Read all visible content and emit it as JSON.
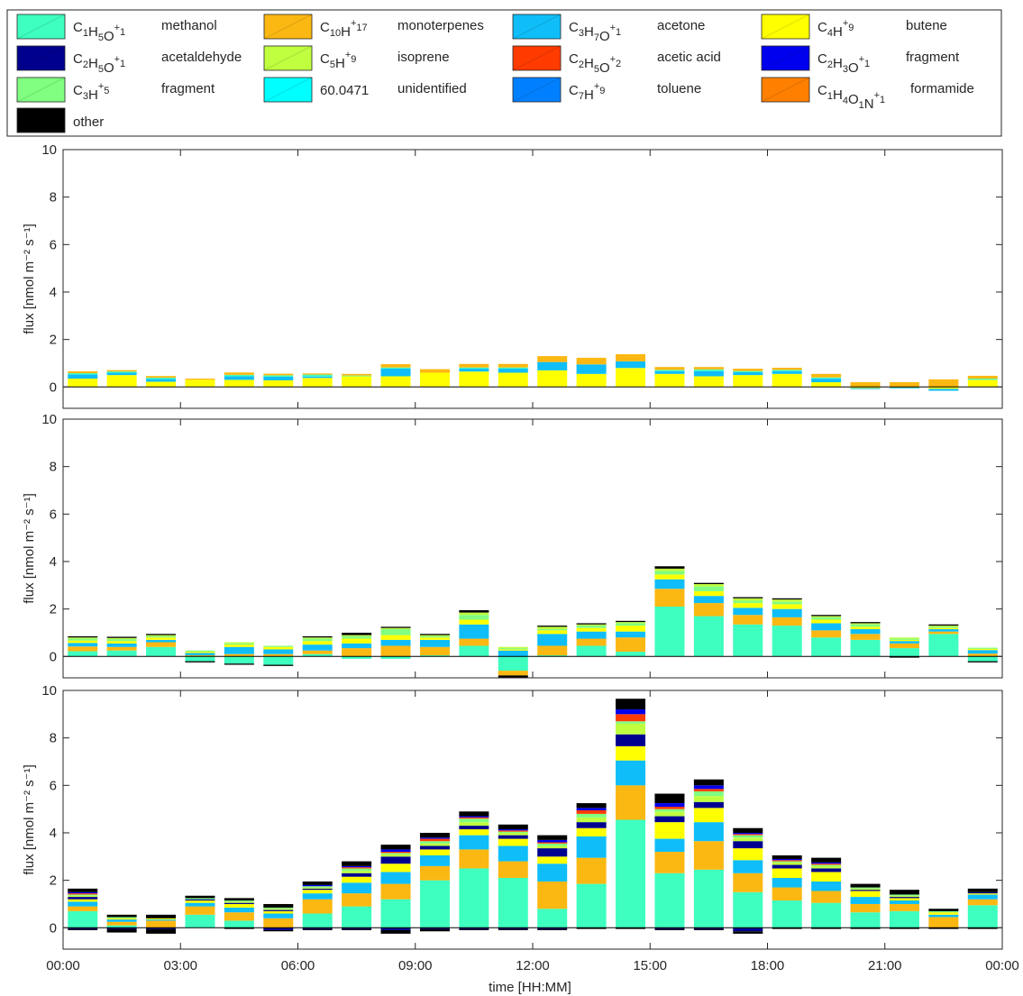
{
  "legend": {
    "entries": [
      {
        "id": "methanol",
        "formula": [
          [
            "C",
            ""
          ],
          [
            "1",
            "sub"
          ],
          [
            "H",
            ""
          ],
          [
            "5",
            "sub"
          ],
          [
            "O",
            ""
          ],
          [
            "+",
            "sup"
          ],
          [
            "1",
            "sub"
          ]
        ],
        "name": "methanol",
        "color": "#3effbf"
      },
      {
        "id": "monoterpenes",
        "formula": [
          [
            "C",
            ""
          ],
          [
            "10",
            "sub"
          ],
          [
            "H",
            ""
          ],
          [
            "+",
            "sup"
          ],
          [
            "17",
            "sub"
          ]
        ],
        "name": "monoterpenes",
        "color": "#fcb812"
      },
      {
        "id": "acetone",
        "formula": [
          [
            "C",
            ""
          ],
          [
            "3",
            "sub"
          ],
          [
            "H",
            ""
          ],
          [
            "7",
            "sub"
          ],
          [
            "O",
            ""
          ],
          [
            "+",
            "sup"
          ],
          [
            "1",
            "sub"
          ]
        ],
        "name": "acetone",
        "color": "#0fbef8"
      },
      {
        "id": "butene",
        "formula": [
          [
            "C",
            ""
          ],
          [
            "4",
            "sub"
          ],
          [
            "H",
            ""
          ],
          [
            "+",
            "sup"
          ],
          [
            "9",
            "sub"
          ]
        ],
        "name": "butene",
        "color": "#ffff00"
      },
      {
        "id": "acetaldehyde",
        "formula": [
          [
            "C",
            ""
          ],
          [
            "2",
            "sub"
          ],
          [
            "H",
            ""
          ],
          [
            "5",
            "sub"
          ],
          [
            "O",
            ""
          ],
          [
            "+",
            "sup"
          ],
          [
            "1",
            "sub"
          ]
        ],
        "name": "acetaldehyde",
        "color": "#00008f"
      },
      {
        "id": "isoprene",
        "formula": [
          [
            "C",
            ""
          ],
          [
            "5",
            "sub"
          ],
          [
            "H",
            ""
          ],
          [
            "+",
            "sup"
          ],
          [
            "9",
            "sub"
          ]
        ],
        "name": "isoprene",
        "color": "#bfff3f"
      },
      {
        "id": "acetic_acid",
        "formula": [
          [
            "C",
            ""
          ],
          [
            "2",
            "sub"
          ],
          [
            "H",
            ""
          ],
          [
            "5",
            "sub"
          ],
          [
            "O",
            ""
          ],
          [
            "+",
            "sup"
          ],
          [
            "2",
            "sub"
          ]
        ],
        "name": "acetic acid",
        "color": "#ff3b00"
      },
      {
        "id": "fragment_c2h3o",
        "formula": [
          [
            "C",
            ""
          ],
          [
            "2",
            "sub"
          ],
          [
            "H",
            ""
          ],
          [
            "3",
            "sub"
          ],
          [
            "O",
            ""
          ],
          [
            "+",
            "sup"
          ],
          [
            "1",
            "sub"
          ]
        ],
        "name": "fragment",
        "color": "#0000ef"
      },
      {
        "id": "fragment_c3h5",
        "formula": [
          [
            "C",
            ""
          ],
          [
            "3",
            "sub"
          ],
          [
            "H",
            ""
          ],
          [
            "+",
            "sup"
          ],
          [
            "5",
            "sub"
          ]
        ],
        "name": "fragment",
        "color": "#80ff80"
      },
      {
        "id": "unidentified",
        "formula": [
          [
            "60.0471",
            ""
          ]
        ],
        "name": "unidentified",
        "color": "#00ffff"
      },
      {
        "id": "toluene",
        "formula": [
          [
            "C",
            ""
          ],
          [
            "7",
            "sub"
          ],
          [
            "H",
            ""
          ],
          [
            "+",
            "sup"
          ],
          [
            "9",
            "sub"
          ]
        ],
        "name": "toluene",
        "color": "#0080ff"
      },
      {
        "id": "formamide",
        "formula": [
          [
            "C",
            ""
          ],
          [
            "1",
            "sub"
          ],
          [
            "H",
            ""
          ],
          [
            "4",
            "sub"
          ],
          [
            "O",
            ""
          ],
          [
            "1",
            "sub"
          ],
          [
            "N",
            ""
          ],
          [
            "+",
            "sup"
          ],
          [
            "1",
            "sub"
          ]
        ],
        "name": "formamide",
        "color": "#ff8000"
      },
      {
        "id": "other",
        "formula": [],
        "name": "other",
        "color": "#000000"
      }
    ]
  },
  "axis_text": {
    "ylabel": "flux [nmol m⁻² s⁻¹]",
    "xlabel": "time [HH:MM]",
    "xtick_labels": [
      "00:00",
      "03:00",
      "06:00",
      "09:00",
      "12:00",
      "15:00",
      "18:00",
      "21:00",
      "00:00"
    ],
    "ytick_labels": [
      "0",
      "2",
      "4",
      "6",
      "8",
      "10"
    ]
  },
  "chart_data": [
    {
      "type": "bar",
      "stacked": true,
      "ylabel": "flux [nmol m⁻² s⁻¹]",
      "ylim": [
        -0.9,
        10
      ],
      "xlim_hours": [
        0,
        24
      ],
      "bin_start_hours": [
        0,
        1,
        2,
        3,
        4,
        5,
        6,
        7,
        8,
        9,
        10,
        11,
        12,
        13,
        14,
        15,
        16,
        17,
        18,
        19,
        20,
        21,
        22,
        23
      ],
      "series": [
        {
          "id": "butene",
          "values": [
            0.35,
            0.5,
            0.22,
            0.3,
            0.3,
            0.28,
            0.38,
            0.45,
            0.45,
            0.6,
            0.65,
            0.6,
            0.7,
            0.55,
            0.8,
            0.55,
            0.45,
            0.5,
            0.55,
            0.2,
            -0.05,
            -0.03,
            -0.08,
            0.3
          ]
        },
        {
          "id": "acetone",
          "values": [
            0.18,
            0.1,
            0.12,
            0.0,
            0.15,
            0.15,
            0.06,
            0.0,
            0.32,
            0.0,
            0.12,
            0.17,
            0.35,
            0.4,
            0.28,
            0.12,
            0.22,
            0.12,
            0.12,
            0.15,
            -0.04,
            -0.03,
            -0.08,
            0.0
          ]
        },
        {
          "id": "methanol",
          "values": [
            0.05,
            0.05,
            0.05,
            0.0,
            0.06,
            0.06,
            0.08,
            0.03,
            0.05,
            0.0,
            0.05,
            0.05,
            0.0,
            0.0,
            0.0,
            0.05,
            0.07,
            0.05,
            0.05,
            0.05,
            0.0,
            0.0,
            0.0,
            0.05
          ]
        },
        {
          "id": "monoterpenes",
          "values": [
            0.08,
            0.06,
            0.07,
            0.05,
            0.1,
            0.07,
            0.05,
            0.07,
            0.14,
            0.15,
            0.15,
            0.15,
            0.25,
            0.28,
            0.3,
            0.12,
            0.1,
            0.1,
            0.09,
            0.15,
            0.2,
            0.2,
            0.32,
            0.12
          ]
        }
      ]
    },
    {
      "type": "bar",
      "stacked": true,
      "ylabel": "flux [nmol m⁻² s⁻¹]",
      "ylim": [
        -0.9,
        10
      ],
      "xlim_hours": [
        0,
        24
      ],
      "bin_start_hours": [
        0,
        1,
        2,
        3,
        4,
        5,
        6,
        7,
        8,
        9,
        10,
        11,
        12,
        13,
        14,
        15,
        16,
        17,
        18,
        19,
        20,
        21,
        22,
        23
      ],
      "series": [
        {
          "id": "methanol",
          "values": [
            0.22,
            0.25,
            0.4,
            -0.2,
            -0.3,
            -0.35,
            0.1,
            -0.1,
            -0.1,
            0.05,
            0.45,
            -0.6,
            0.05,
            0.45,
            0.2,
            2.1,
            1.7,
            1.35,
            1.3,
            0.8,
            0.7,
            0.35,
            0.95,
            -0.2
          ]
        },
        {
          "id": "monoterpenes",
          "values": [
            0.2,
            0.15,
            0.2,
            0.05,
            0.1,
            0.1,
            0.15,
            0.35,
            0.45,
            0.35,
            0.3,
            -0.2,
            0.4,
            0.3,
            0.6,
            0.75,
            0.55,
            0.4,
            0.35,
            0.3,
            0.25,
            0.2,
            0.1,
            0.12
          ]
        },
        {
          "id": "acetone",
          "values": [
            0.15,
            0.15,
            0.1,
            0.1,
            0.3,
            0.2,
            0.25,
            0.2,
            0.25,
            0.3,
            0.6,
            0.25,
            0.5,
            0.3,
            0.25,
            0.4,
            0.3,
            0.3,
            0.35,
            0.3,
            0.2,
            0.1,
            0.1,
            0.15
          ]
        },
        {
          "id": "butene",
          "values": [
            0.1,
            0.1,
            0.1,
            0.05,
            0.1,
            0.1,
            0.15,
            0.2,
            0.2,
            0.1,
            0.2,
            0.05,
            0.15,
            0.15,
            0.25,
            0.2,
            0.2,
            0.2,
            0.2,
            0.15,
            0.1,
            0.05,
            0.05,
            0.05
          ]
        },
        {
          "id": "fragment_c3h5",
          "values": [
            0.08,
            0.08,
            0.05,
            0.05,
            0.05,
            0.05,
            0.1,
            0.1,
            0.25,
            0.05,
            0.2,
            0.05,
            0.05,
            0.1,
            0.1,
            0.15,
            0.2,
            0.1,
            0.1,
            0.1,
            0.1,
            0.05,
            0.05,
            0.05
          ]
        },
        {
          "id": "isoprene",
          "values": [
            0.05,
            0.05,
            0.05,
            0.0,
            0.05,
            0.0,
            0.05,
            0.05,
            0.05,
            0.05,
            0.1,
            0.05,
            0.1,
            0.05,
            0.05,
            0.1,
            0.1,
            0.1,
            0.1,
            0.05,
            0.05,
            0.05,
            0.05,
            0.0
          ]
        },
        {
          "id": "other",
          "values": [
            0.05,
            0.05,
            0.05,
            -0.05,
            -0.05,
            -0.05,
            0.05,
            0.1,
            0.05,
            0.05,
            0.1,
            -0.1,
            0.05,
            0.05,
            0.05,
            0.1,
            0.05,
            0.05,
            0.05,
            0.05,
            0.05,
            -0.05,
            0.05,
            -0.05
          ]
        }
      ]
    },
    {
      "type": "bar",
      "stacked": true,
      "ylabel": "flux [nmol m⁻² s⁻¹]",
      "ylim": [
        -0.9,
        10
      ],
      "xlim_hours": [
        0,
        24
      ],
      "bin_start_hours": [
        0,
        1,
        2,
        3,
        4,
        5,
        6,
        7,
        8,
        9,
        10,
        11,
        12,
        13,
        14,
        15,
        16,
        17,
        18,
        19,
        20,
        21,
        22,
        23
      ],
      "series": [
        {
          "id": "methanol",
          "values": [
            0.7,
            0.1,
            0.0,
            0.55,
            0.3,
            0.0,
            0.6,
            0.9,
            1.2,
            2.0,
            2.5,
            2.1,
            0.8,
            1.85,
            4.55,
            2.3,
            2.45,
            1.5,
            1.15,
            1.05,
            0.65,
            0.7,
            0.0,
            0.95
          ]
        },
        {
          "id": "monoterpenes",
          "values": [
            0.2,
            0.15,
            0.3,
            0.35,
            0.35,
            0.4,
            0.6,
            0.55,
            0.65,
            0.6,
            0.8,
            0.7,
            1.15,
            1.1,
            1.45,
            0.9,
            1.2,
            0.8,
            0.55,
            0.5,
            0.35,
            0.3,
            0.45,
            0.25
          ]
        },
        {
          "id": "acetone",
          "values": [
            0.2,
            0.1,
            0.05,
            0.15,
            0.2,
            0.2,
            0.25,
            0.45,
            0.5,
            0.45,
            0.6,
            0.65,
            0.75,
            0.9,
            1.05,
            0.55,
            0.8,
            0.55,
            0.4,
            0.4,
            0.3,
            0.15,
            0.1,
            0.2
          ]
        },
        {
          "id": "butene",
          "values": [
            0.1,
            0.05,
            0.05,
            0.1,
            0.15,
            0.1,
            0.15,
            0.25,
            0.35,
            0.25,
            0.25,
            0.3,
            0.3,
            0.35,
            0.6,
            0.7,
            0.6,
            0.5,
            0.4,
            0.4,
            0.25,
            0.1,
            0.1,
            0.05
          ]
        },
        {
          "id": "acetaldehyde",
          "values": [
            0.1,
            0.0,
            0.0,
            0.05,
            0.05,
            0.05,
            0.05,
            0.15,
            0.3,
            0.15,
            0.15,
            0.15,
            0.35,
            0.25,
            0.5,
            0.25,
            0.25,
            0.3,
            0.15,
            0.15,
            0.05,
            0.05,
            0.0,
            0.05
          ]
        },
        {
          "id": "isoprene",
          "values": [
            0.05,
            0.0,
            0.0,
            0.0,
            0.05,
            0.05,
            0.05,
            0.1,
            0.1,
            0.1,
            0.15,
            0.1,
            0.1,
            0.2,
            0.45,
            0.2,
            0.25,
            0.15,
            0.1,
            0.1,
            0.05,
            0.05,
            0.0,
            0.0
          ]
        },
        {
          "id": "fragment_c3h5",
          "values": [
            0.05,
            0.05,
            0.0,
            0.05,
            0.05,
            0.05,
            0.05,
            0.1,
            0.05,
            0.1,
            0.15,
            0.05,
            0.1,
            0.15,
            0.1,
            0.1,
            0.2,
            0.1,
            0.05,
            0.05,
            0.05,
            0.05,
            0.05,
            0.0
          ]
        },
        {
          "id": "acetic_acid",
          "values": [
            0.05,
            0.0,
            0.0,
            0.0,
            0.0,
            0.0,
            0.0,
            0.05,
            0.05,
            0.1,
            0.05,
            0.05,
            0.05,
            0.15,
            0.3,
            0.1,
            0.1,
            0.05,
            0.05,
            0.05,
            0.0,
            0.0,
            0.0,
            0.0
          ]
        },
        {
          "id": "fragment_c2h3o",
          "values": [
            0.05,
            0.0,
            0.0,
            0.0,
            0.0,
            0.0,
            0.05,
            0.05,
            0.1,
            0.05,
            0.05,
            0.05,
            0.1,
            0.1,
            0.2,
            0.15,
            0.15,
            0.05,
            0.05,
            0.05,
            0.0,
            0.0,
            0.0,
            0.0
          ]
        },
        {
          "id": "other",
          "values": [
            0.15,
            0.1,
            0.15,
            0.1,
            0.1,
            0.15,
            0.15,
            0.2,
            0.2,
            0.2,
            0.2,
            0.2,
            0.2,
            0.2,
            0.45,
            0.4,
            0.25,
            0.2,
            0.15,
            0.2,
            0.15,
            0.2,
            0.1,
            0.15
          ]
        },
        {
          "id": "acetaldehyde",
          "values": [
            -0.05,
            -0.05,
            -0.05,
            0.0,
            0.0,
            -0.1,
            -0.05,
            -0.05,
            -0.1,
            -0.05,
            -0.05,
            -0.05,
            -0.05,
            0.0,
            0.0,
            -0.05,
            -0.05,
            -0.15,
            0.0,
            0.0,
            0.0,
            0.0,
            0.0,
            0.0
          ]
        },
        {
          "id": "other",
          "values": [
            -0.05,
            -0.15,
            -0.2,
            0.0,
            -0.05,
            -0.05,
            -0.05,
            -0.05,
            -0.15,
            -0.1,
            -0.05,
            -0.05,
            -0.05,
            -0.05,
            -0.05,
            -0.05,
            -0.05,
            -0.1,
            -0.05,
            -0.05,
            -0.05,
            -0.05,
            -0.05,
            -0.05
          ]
        }
      ]
    }
  ]
}
